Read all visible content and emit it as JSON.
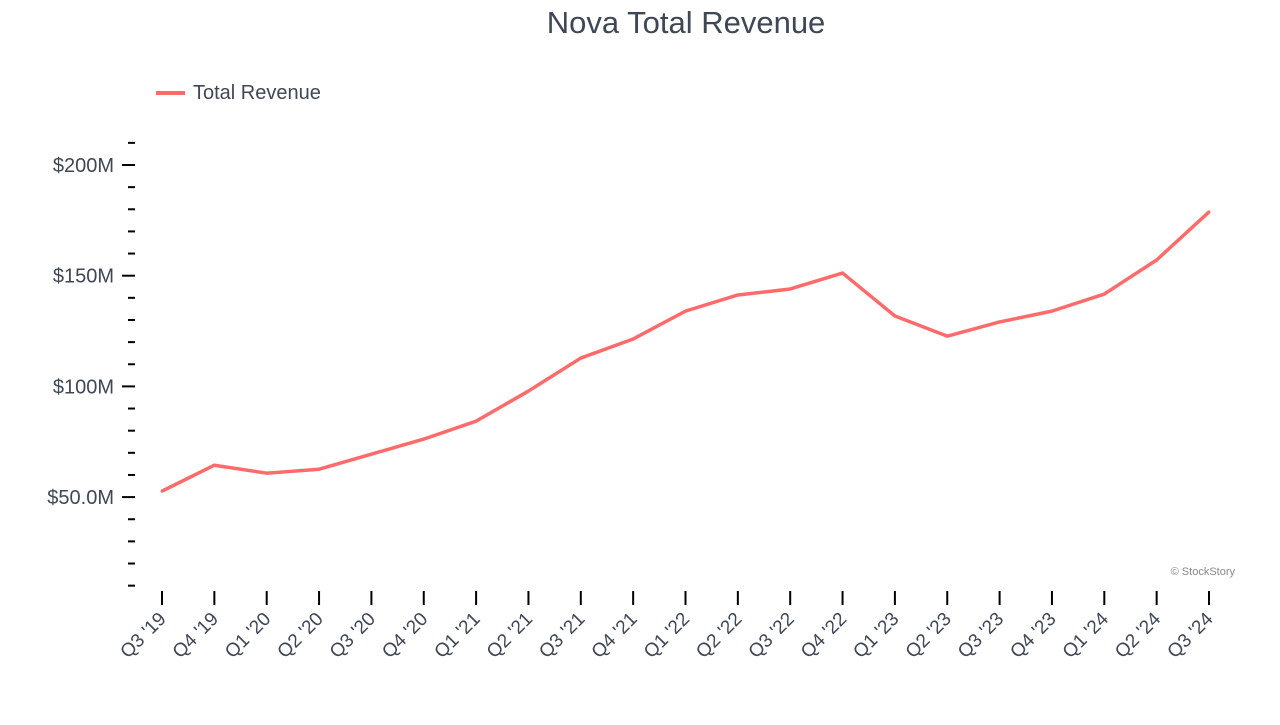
{
  "chart_data": {
    "type": "line",
    "title": "Nova Total Revenue",
    "xlabel": "",
    "ylabel": "",
    "categories": [
      "Q3 '19",
      "Q4 '19",
      "Q1 '20",
      "Q2 '20",
      "Q3 '20",
      "Q4 '20",
      "Q1 '21",
      "Q2 '21",
      "Q3 '21",
      "Q4 '21",
      "Q1 '22",
      "Q2 '22",
      "Q3 '22",
      "Q4 '22",
      "Q1 '23",
      "Q2 '23",
      "Q3 '23",
      "Q4 '23",
      "Q1 '24",
      "Q2 '24",
      "Q3 '24"
    ],
    "series": [
      {
        "name": "Total Revenue",
        "color": "#ff6b6b",
        "values": [
          52.7,
          64.4,
          60.8,
          62.6,
          69.4,
          76.2,
          84.3,
          97.9,
          112.8,
          121.4,
          134.0,
          141.3,
          144.0,
          151.2,
          131.8,
          122.7,
          129.1,
          134.0,
          141.7,
          157.1,
          178.8
        ]
      }
    ],
    "yticks": [
      50,
      100,
      150,
      200
    ],
    "ytick_labels": [
      "$50.0M",
      "$100M",
      "$150M",
      "$200M"
    ],
    "ylim": [
      10,
      210
    ],
    "grid": false,
    "legend": "top-left"
  },
  "watermark": "© StockStory"
}
